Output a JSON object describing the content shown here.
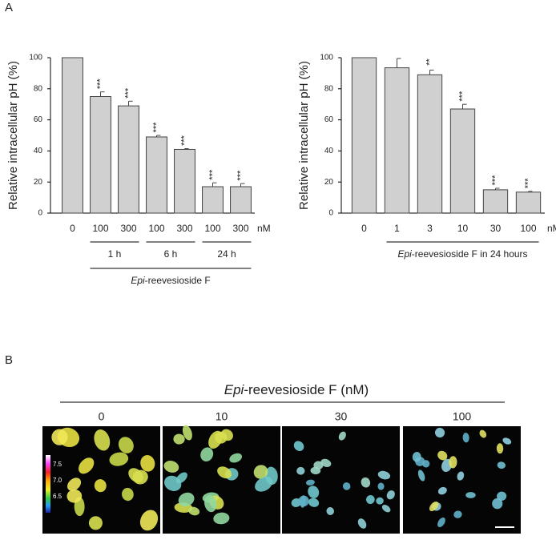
{
  "panel_labels": [
    "A",
    "B"
  ],
  "chart_data": [
    {
      "type": "bar",
      "ylabel": "Relative intracellular pH (%)",
      "categories": [
        "0",
        "100",
        "300",
        "100",
        "300",
        "100",
        "300"
      ],
      "unit": "nM",
      "values": [
        100,
        75,
        69,
        49,
        41,
        17,
        17
      ],
      "errors": [
        0,
        3,
        3,
        1,
        0.5,
        2.5,
        2
      ],
      "significance": [
        null,
        "***",
        "***",
        "***",
        "***",
        "***",
        "***"
      ],
      "groups": [
        "1 h",
        "6 h",
        "24 h"
      ],
      "xlabel": {
        "italic": "Epi",
        "rest": "-reevesioside F"
      },
      "color": "#d0d0d0",
      "ylim": [
        0,
        100
      ],
      "yticks": [
        0,
        20,
        40,
        60,
        80,
        100
      ]
    },
    {
      "type": "bar",
      "ylabel": "Relative intracellular pH (%)",
      "categories": [
        "0",
        "1",
        "3",
        "10",
        "30",
        "100"
      ],
      "unit": "nM",
      "values": [
        100,
        93.5,
        89,
        67,
        15,
        13.5
      ],
      "errors": [
        0,
        6,
        3,
        3,
        1,
        0.5
      ],
      "significance": [
        null,
        null,
        "**",
        "***",
        "***",
        "***"
      ],
      "xlabel": {
        "italic": "Epi",
        "rest": "-reevesioside F in 24 hours"
      },
      "color": "#d0d0d0",
      "ylim": [
        0,
        100
      ],
      "yticks": [
        0,
        20,
        40,
        60,
        80,
        100
      ]
    }
  ],
  "panel_b": {
    "title": {
      "italic": "Epi",
      "rest": "-reevesioside F (nM)"
    },
    "columns": [
      "0",
      "10",
      "30",
      "100"
    ],
    "colorbar_ticks": [
      "7.5",
      "7.0",
      "6.5"
    ]
  }
}
